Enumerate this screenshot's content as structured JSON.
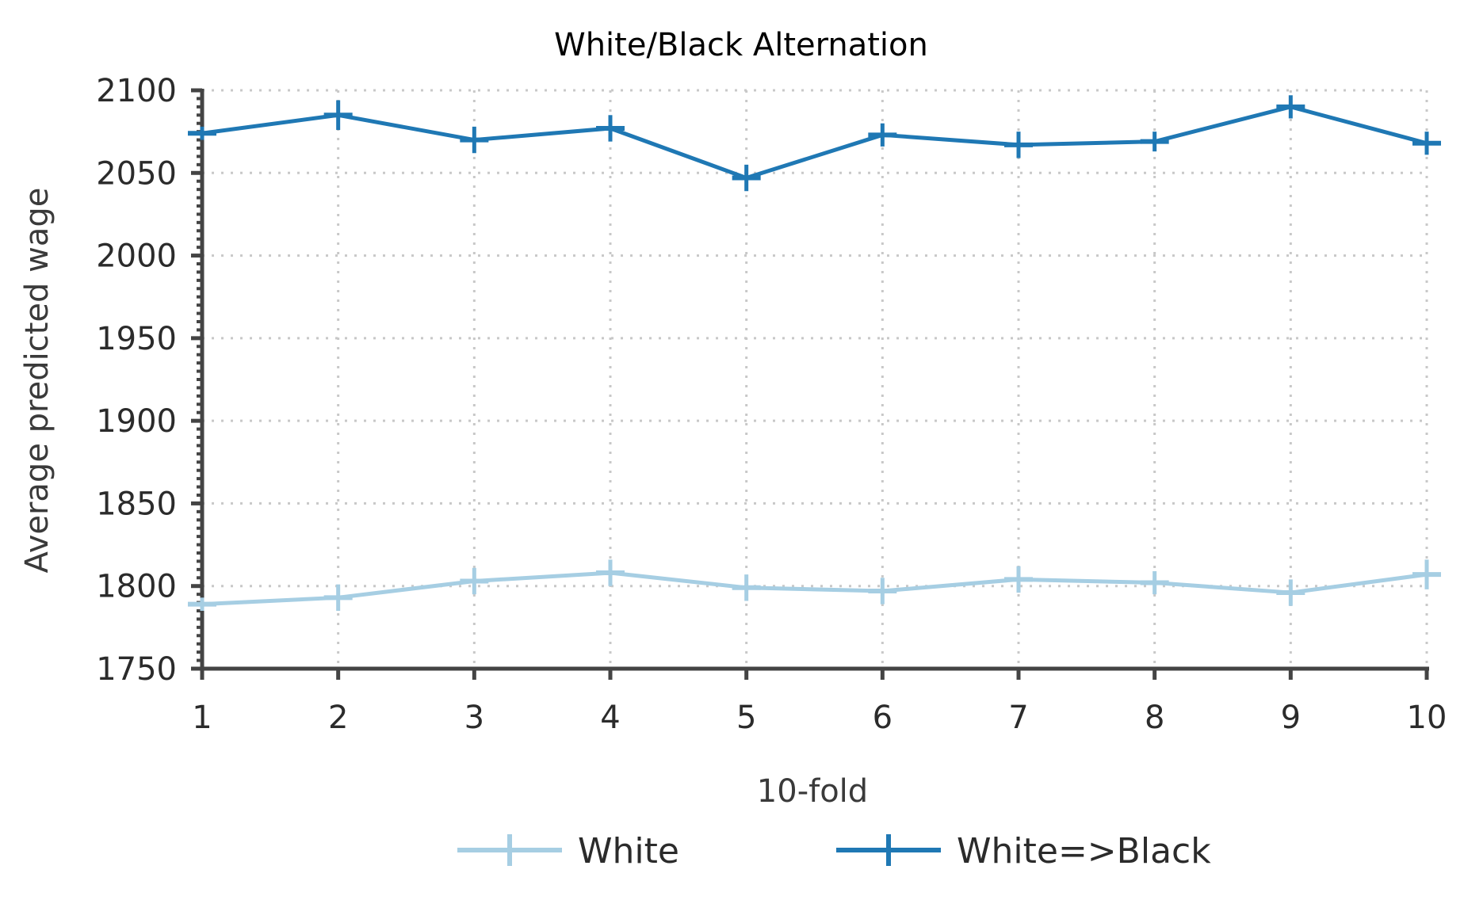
{
  "chart_data": {
    "type": "line",
    "title": "White/Black Alternation",
    "xlabel": "10-fold",
    "ylabel": "Average predicted wage",
    "x": [
      1,
      2,
      3,
      4,
      5,
      6,
      7,
      8,
      9,
      10
    ],
    "xlim": [
      1,
      10
    ],
    "ylim": [
      1750,
      2100
    ],
    "yticks": [
      1750,
      1800,
      1850,
      1900,
      1950,
      2000,
      2050,
      2100
    ],
    "grid": true,
    "legend_position": "bottom",
    "series": [
      {
        "name": "White",
        "color": "#a6cee3",
        "values": [
          1789,
          1793,
          1803,
          1808,
          1799,
          1797,
          1804,
          1802,
          1796,
          1807
        ],
        "error": [
          4,
          8,
          8,
          8,
          8,
          8,
          8,
          7,
          8,
          9
        ]
      },
      {
        "name": "White=>Black",
        "color": "#1f78b4",
        "values": [
          2074,
          2085,
          2070,
          2077,
          2047,
          2073,
          2067,
          2069,
          2090,
          2068
        ],
        "error": [
          4,
          9,
          8,
          8,
          8,
          7,
          8,
          6,
          7,
          7
        ]
      }
    ]
  }
}
